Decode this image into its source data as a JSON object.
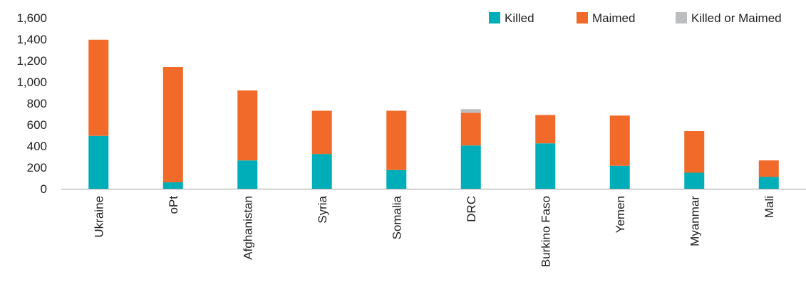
{
  "chart_data": {
    "type": "bar",
    "stacked": true,
    "title": "",
    "xlabel": "",
    "ylabel": "",
    "ylim": [
      0,
      1600
    ],
    "yticks": [
      0,
      200,
      400,
      600,
      800,
      1000,
      1200,
      1400,
      1600
    ],
    "ytick_labels": [
      "0",
      "200",
      "400",
      "600",
      "800",
      "1,000",
      "1,200",
      "1,400",
      "1,600"
    ],
    "grid": false,
    "legend_position": "top-right",
    "categories": [
      "Ukraine",
      "oPt",
      "Afghanistan",
      "Syria",
      "Somalia",
      "DRC",
      "Burkino Faso",
      "Yemen",
      "Myanmar",
      "Mali"
    ],
    "series": [
      {
        "name": "Killed",
        "color": "#00aeb9",
        "values": [
          495,
          60,
          265,
          325,
          175,
          405,
          425,
          215,
          150,
          110
        ]
      },
      {
        "name": "Maimed",
        "color": "#f26a2a",
        "values": [
          900,
          1080,
          655,
          405,
          555,
          305,
          265,
          470,
          390,
          155
        ]
      },
      {
        "name": "Killed or Maimed",
        "color": "#bdbec0",
        "values": [
          0,
          0,
          0,
          0,
          0,
          35,
          0,
          0,
          0,
          0
        ]
      }
    ]
  }
}
